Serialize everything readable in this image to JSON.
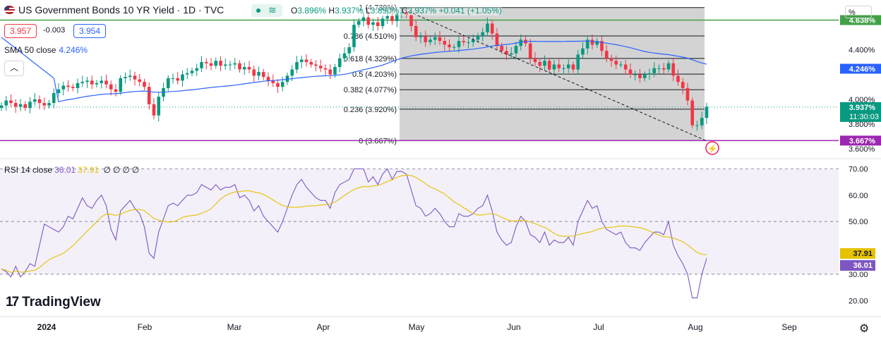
{
  "header": {
    "symbol_title": "US Government Bonds 10 YR Yield · 1D · TVC",
    "ohlc_open_label": "O",
    "ohlc_open": "3.896%",
    "ohlc_high_label": "H",
    "ohlc_high": "3.937%",
    "ohlc_low_label": "L",
    "ohlc_low": "3.890%",
    "ohlc_close_label": "C",
    "ohlc_close": "3.937%",
    "change": "+0.041 (+1.05%)",
    "live_icon": "wave-icon"
  },
  "trade": {
    "sell": "3.957",
    "spread": "-0.003",
    "buy": "3.954"
  },
  "sma": {
    "label": "SMA 50 close",
    "value": "4.246%"
  },
  "collapse_icon": "chevron-up-icon",
  "scale_unit_label": "%",
  "rsi": {
    "label": "RSI 14 close",
    "value": "36.01",
    "ma_value": "37.91",
    "extra": [
      "∅",
      "∅",
      "∅",
      "∅"
    ]
  },
  "logo": "TradingView",
  "settings_icon": "gear-icon",
  "colors": {
    "up": "#089981",
    "down": "#f23645",
    "sma": "#2962ff",
    "rsi": "#7e57c2",
    "rsi_ma": "#e6c200",
    "fib_low": "#9c27b0",
    "fib_high": "#43a047"
  },
  "chart_data": [
    {
      "type": "candlestick",
      "title": "US Government Bonds 10 YR Yield · 1D · TVC",
      "ylabel": "%",
      "ylim": [
        3.55,
        4.8
      ],
      "x_ticks": [
        "2024",
        "Feb",
        "Mar",
        "Apr",
        "May",
        "Jun",
        "Jul",
        "Aug",
        "Sep"
      ],
      "y_ticks": [
        "4.400%",
        "4.000%",
        "3.800%",
        "3.600%"
      ],
      "price_labels": [
        {
          "text": "4.638%",
          "value": 4.638,
          "color": "#43a047"
        },
        {
          "text": "4.246%",
          "value": 4.246,
          "color": "#2962ff"
        },
        {
          "text": "3.937%",
          "value": 3.937,
          "color": "#089981",
          "sub": "11:30:03"
        },
        {
          "text": "3.667%",
          "value": 3.667,
          "color": "#9c27b0"
        }
      ],
      "fib_levels": [
        {
          "ratio": "1",
          "value": 4.739,
          "label": "1 (4.739%)"
        },
        {
          "ratio": "0.786",
          "value": 4.51,
          "label": "0.786 (4.510%)"
        },
        {
          "ratio": "0.618",
          "value": 4.329,
          "label": "0.618 (4.329%)"
        },
        {
          "ratio": "0.5",
          "value": 4.203,
          "label": "0.5 (4.203%)"
        },
        {
          "ratio": "0.382",
          "value": 4.077,
          "label": "0.382 (4.077%)"
        },
        {
          "ratio": "0.236",
          "value": 3.92,
          "label": "0.236 (3.920%)"
        },
        {
          "ratio": "0",
          "value": 3.667,
          "label": "0 (3.667%)"
        }
      ],
      "horizontal_lines": [
        {
          "value": 4.638,
          "color": "#43a047"
        },
        {
          "value": 3.667,
          "color": "#9c27b0"
        }
      ],
      "close_series": [
        3.95,
        3.99,
        3.97,
        3.94,
        3.96,
        3.93,
        3.98,
        4.0,
        3.97,
        3.95,
        3.97,
        4.05,
        4.08,
        4.11,
        4.1,
        4.09,
        4.13,
        4.14,
        4.15,
        4.12,
        4.13,
        4.15,
        4.12,
        4.08,
        4.06,
        4.17,
        4.18,
        4.19,
        4.16,
        4.14,
        4.1,
        3.96,
        3.87,
        4.02,
        4.09,
        4.17,
        4.17,
        4.15,
        4.2,
        4.21,
        4.23,
        4.25,
        4.3,
        4.29,
        4.27,
        4.31,
        4.27,
        4.28,
        4.28,
        4.29,
        4.24,
        4.26,
        4.24,
        4.19,
        4.22,
        4.18,
        4.15,
        4.13,
        4.1,
        4.14,
        4.19,
        4.24,
        4.3,
        4.32,
        4.3,
        4.28,
        4.27,
        4.25,
        4.24,
        4.2,
        4.26,
        4.33,
        4.37,
        4.42,
        4.6,
        4.63,
        4.66,
        4.6,
        4.62,
        4.59,
        4.65,
        4.67,
        4.63,
        4.69,
        4.7,
        4.68,
        4.59,
        4.5,
        4.51,
        4.46,
        4.48,
        4.5,
        4.47,
        4.44,
        4.42,
        4.42,
        4.47,
        4.46,
        4.46,
        4.48,
        4.51,
        4.54,
        4.61,
        4.53,
        4.43,
        4.39,
        4.36,
        4.37,
        4.43,
        4.48,
        4.45,
        4.33,
        4.3,
        4.27,
        4.31,
        4.24,
        4.28,
        4.25,
        4.25,
        4.28,
        4.24,
        4.36,
        4.41,
        4.48,
        4.44,
        4.47,
        4.39,
        4.33,
        4.31,
        4.28,
        4.28,
        4.24,
        4.2,
        4.2,
        4.17,
        4.2,
        4.21,
        4.25,
        4.25,
        4.24,
        4.29,
        4.19,
        4.14,
        4.09,
        3.99,
        3.79,
        3.79,
        3.85,
        3.94
      ],
      "sma50_value": 4.246
    },
    {
      "type": "line",
      "title": "RSI 14 close",
      "ylim": [
        15,
        72
      ],
      "y_ticks": [
        "70.00",
        "60.00",
        "50.00",
        "30.00",
        "20.00"
      ],
      "band": [
        30,
        70
      ],
      "series": [
        {
          "name": "RSI 14 close",
          "color": "#7e57c2",
          "last": 36.01,
          "values": [
            32,
            31,
            29,
            33,
            29,
            31,
            34,
            33,
            41,
            49,
            48,
            47,
            46,
            48,
            52,
            51,
            55,
            59,
            56,
            55,
            58,
            60,
            56,
            47,
            43,
            54,
            56,
            58,
            55,
            53,
            48,
            38,
            36,
            46,
            51,
            56,
            57,
            56,
            58,
            60,
            60,
            61,
            64,
            63,
            62,
            64,
            62,
            63,
            63,
            64,
            59,
            60,
            58,
            54,
            56,
            52,
            50,
            48,
            46,
            50,
            55,
            60,
            64,
            66,
            63,
            61,
            59,
            58,
            58,
            55,
            61,
            64,
            65,
            66,
            70,
            70,
            70,
            65,
            67,
            64,
            68,
            70,
            66,
            69,
            69,
            68,
            62,
            56,
            55,
            52,
            53,
            55,
            53,
            50,
            48,
            48,
            53,
            52,
            52,
            53,
            55,
            56,
            60,
            54,
            46,
            43,
            41,
            42,
            48,
            52,
            50,
            45,
            44,
            42,
            46,
            41,
            43,
            42,
            42,
            44,
            41,
            50,
            54,
            58,
            55,
            56,
            50,
            47,
            46,
            45,
            46,
            42,
            40,
            40,
            39,
            42,
            44,
            46,
            46,
            45,
            50,
            41,
            37,
            34,
            30,
            21,
            21,
            30,
            36
          ]
        },
        {
          "name": "MA",
          "color": "#e6c200",
          "last": 37.91
        }
      ]
    }
  ]
}
